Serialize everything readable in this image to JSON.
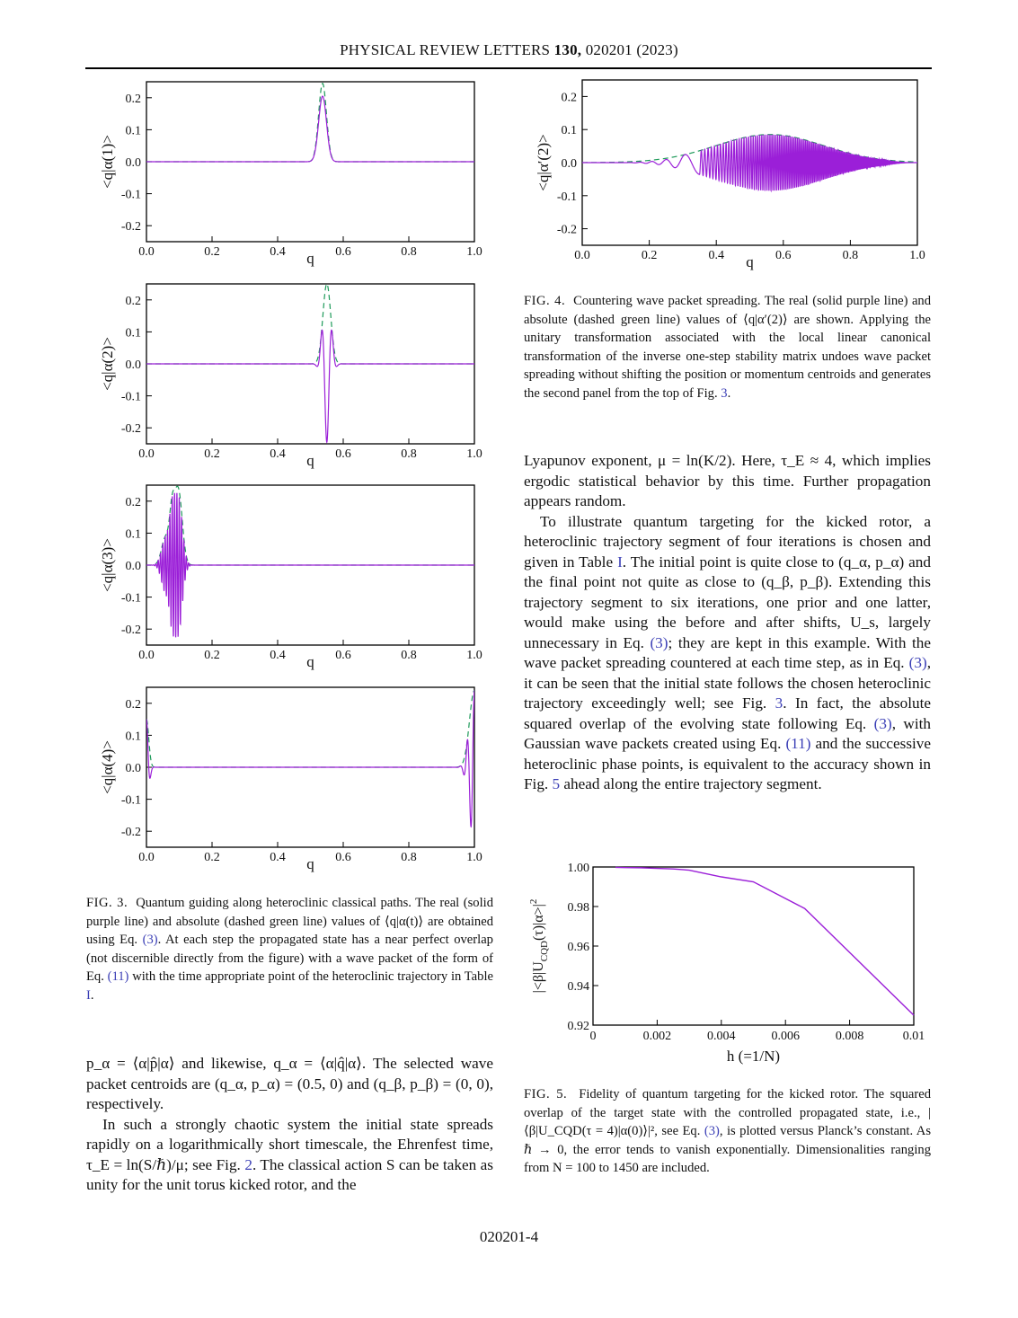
{
  "header": {
    "journal": "PHYSICAL REVIEW LETTERS",
    "volume": "130,",
    "article": "020201 (2023)"
  },
  "footer": {
    "page": "020201-4"
  },
  "colors": {
    "real": "#9b1fd8",
    "abs": "#1e9a5a"
  },
  "fig3": {
    "panels": [
      {
        "ylabel": "<q|α(1)>",
        "xlabel": "q",
        "xticks": [
          "0.0",
          "0.2",
          "0.4",
          "0.6",
          "0.8",
          "1.0"
        ],
        "yticks": [
          "0.2",
          "0.1",
          "0.0",
          "-0.1",
          "-0.2"
        ]
      },
      {
        "ylabel": "<q|α(2)>",
        "xlabel": "q",
        "xticks": [
          "0.0",
          "0.2",
          "0.4",
          "0.6",
          "0.8",
          "1.0"
        ],
        "yticks": [
          "0.2",
          "0.1",
          "0.0",
          "-0.1",
          "-0.2"
        ]
      },
      {
        "ylabel": "<q|α(3)>",
        "xlabel": "q",
        "xticks": [
          "0.0",
          "0.2",
          "0.4",
          "0.6",
          "0.8",
          "1.0"
        ],
        "yticks": [
          "0.2",
          "0.1",
          "0.0",
          "-0.1",
          "-0.2"
        ]
      },
      {
        "ylabel": "<q|α(4)>",
        "xlabel": "q",
        "xticks": [
          "0.0",
          "0.2",
          "0.4",
          "0.6",
          "0.8",
          "1.0"
        ],
        "yticks": [
          "0.2",
          "0.1",
          "0.0",
          "-0.1",
          "-0.2"
        ]
      }
    ],
    "caption_label": "FIG. 3.",
    "caption_a": "Quantum guiding along heteroclinic classical paths. The real (solid purple line) and absolute (dashed green line) values of ⟨q|α(t)⟩ are obtained using Eq.",
    "caption_ref1": "(3)",
    "caption_b": ". At each step the propagated state has a near perfect overlap (not discernible directly from the figure) with a wave packet of the form of Eq.",
    "caption_ref2": "(11)",
    "caption_c": "with the time appropriate point of the heteroclinic trajectory in Table",
    "caption_ref3": "I",
    "caption_d": "."
  },
  "fig4": {
    "ylabel": "<q|α′(2)>",
    "xlabel": "q",
    "xticks": [
      "0.0",
      "0.2",
      "0.4",
      "0.6",
      "0.8",
      "1.0"
    ],
    "yticks": [
      "0.2",
      "0.1",
      "0.0",
      "-0.1",
      "-0.2"
    ],
    "caption_label": "FIG. 4.",
    "caption_a": "Countering wave packet spreading. The real (solid purple line) and absolute (dashed green line) values of ⟨q|α′(2)⟩ are shown. Applying the unitary transformation associated with the local linear canonical transformation of the inverse one-step stability matrix undoes wave packet spreading without shifting the position or momentum centroids and generates the second panel from the top of Fig.",
    "caption_ref1": "3",
    "caption_b": "."
  },
  "fig5": {
    "ylabel": "|<β|U",
    "ylabel_sub": "CQD",
    "ylabel_tail": "(τ)|α>|",
    "ylabel_sup": "2",
    "xlabel": "h (=1/N)",
    "xticks": [
      "0",
      "0.002",
      "0.004",
      "0.006",
      "0.008",
      "0.01"
    ],
    "yticks": [
      "1.00",
      "0.98",
      "0.96",
      "0.94",
      "0.92"
    ],
    "caption_label": "FIG. 5.",
    "caption_a": "Fidelity of quantum targeting for the kicked rotor. The squared overlap of the target state with the controlled propagated state, i.e., |⟨β|U_CQD(τ = 4)|α(0)⟩|², see Eq.",
    "caption_ref1": "(3)",
    "caption_b": ", is plotted versus Planck’s constant. As ℏ → 0, the error tends to vanish exponentially. Dimensionalities ranging from N = 100 to 1450 are included."
  },
  "chart_data": [
    {
      "type": "line",
      "title": "",
      "xlabel": "q",
      "ylabel": "<q|α(1)>",
      "xlim": [
        0,
        1
      ],
      "ylim": [
        -0.25,
        0.25
      ],
      "series": [
        {
          "name": "real",
          "style": "solid purple",
          "peaks": [
            {
              "q": 0.537,
              "amp": 0.205
            }
          ]
        },
        {
          "name": "abs",
          "style": "dashed green",
          "peaks": [
            {
              "q": 0.537,
              "amp": 0.245
            }
          ]
        }
      ]
    },
    {
      "type": "line",
      "title": "",
      "xlabel": "q",
      "ylabel": "<q|α(2)>",
      "xlim": [
        0,
        1
      ],
      "ylim": [
        -0.25,
        0.25
      ],
      "series": [
        {
          "name": "real",
          "style": "solid purple",
          "peaks": [
            {
              "q": 0.52,
              "amp": -0.045
            },
            {
              "q": 0.533,
              "amp": 0.15
            },
            {
              "q": 0.55,
              "amp": -0.245
            },
            {
              "q": 0.567,
              "amp": 0.15
            },
            {
              "q": 0.58,
              "amp": -0.045
            }
          ]
        },
        {
          "name": "abs",
          "style": "dashed green",
          "center": 0.55,
          "amp": 0.25
        }
      ]
    },
    {
      "type": "line",
      "title": "",
      "xlabel": "q",
      "ylabel": "<q|α(3)>",
      "xlim": [
        0,
        1
      ],
      "ylim": [
        -0.25,
        0.25
      ],
      "series": [
        {
          "name": "real",
          "style": "solid purple",
          "range": [
            0.04,
            0.13
          ],
          "max": 0.205,
          "min": -0.205
        },
        {
          "name": "abs",
          "style": "dashed green",
          "range": [
            0.04,
            0.13
          ],
          "max": 0.245
        }
      ]
    },
    {
      "type": "line",
      "title": "",
      "xlabel": "q",
      "ylabel": "<q|α(4)>",
      "xlim": [
        0,
        1
      ],
      "ylim": [
        -0.25,
        0.25
      ],
      "series": [
        {
          "name": "real",
          "style": "solid purple",
          "edges": [
            0.0,
            1.0
          ],
          "max": 0.2,
          "min": -0.245
        },
        {
          "name": "abs",
          "style": "dashed green",
          "edges": [
            0.0,
            1.0
          ],
          "max": 0.24
        }
      ]
    },
    {
      "type": "line",
      "title": "",
      "xlabel": "q",
      "ylabel": "<q|α′(2)>",
      "xlim": [
        0,
        1
      ],
      "ylim": [
        -0.25,
        0.25
      ],
      "series": [
        {
          "name": "real",
          "style": "solid purple",
          "range": [
            0.12,
            0.98
          ],
          "max": 0.085,
          "min": -0.085
        },
        {
          "name": "abs",
          "style": "dashed green",
          "center": 0.56,
          "amp": 0.085
        }
      ]
    },
    {
      "type": "line",
      "title": "",
      "xlabel": "h (=1/N)",
      "ylabel": "|<β|U_CQD(τ)|α>|^2",
      "xlim": [
        0,
        0.01
      ],
      "ylim": [
        0.92,
        1.0
      ],
      "series": [
        {
          "name": "fidelity",
          "x": [
            0.0007,
            0.001,
            0.0015,
            0.002,
            0.0025,
            0.003,
            0.004,
            0.005,
            0.0066,
            0.01
          ],
          "y": [
            0.9998,
            0.9997,
            0.9996,
            0.9993,
            0.999,
            0.9984,
            0.995,
            0.9925,
            0.979,
            0.925
          ]
        }
      ]
    }
  ],
  "body_left": {
    "p1": "p_α = ⟨α|p̂|α⟩ and likewise, q_α = ⟨α|q̂|α⟩. The selected wave packet centroids are (q_α, p_α) = (0.5, 0) and (q_β, p_β) = (0, 0), respectively.",
    "p2a": "In such a strongly chaotic system the initial state spreads rapidly on a logarithmically short timescale, the Ehrenfest time, τ_E = ln(S/ℏ)/μ; see Fig.",
    "p2ref": "2",
    "p2b": ". The classical action S can be taken as unity for the unit torus kicked rotor, and the"
  },
  "body_right": {
    "p1": "Lyapunov exponent, μ = ln(K/2). Here, τ_E ≈ 4, which implies ergodic statistical behavior by this time. Further propagation appears random.",
    "p2a": "To illustrate quantum targeting for the kicked rotor, a heteroclinic trajectory segment of four iterations is chosen and given in Table",
    "p2ref1": "I",
    "p2b": ". The initial point is quite close to (q_α, p_α) and the final point not quite as close to (q_β, p_β). Extending this trajectory segment to six iterations, one prior and one latter, would make using the before and after shifts, U_s, largely unnecessary in Eq.",
    "p2ref2": "(3)",
    "p2c": "; they are kept in this example. With the wave packet spreading countered at each time step, as in Eq.",
    "p2ref3": "(3)",
    "p2d": ", it can be seen that the initial state follows the chosen heteroclinic trajectory exceedingly well; see Fig.",
    "p2ref4": "3",
    "p2e": ". In fact, the absolute squared overlap of the evolving state following Eq.",
    "p2ref5": "(3)",
    "p2f": ", with Gaussian wave packets created using Eq.",
    "p2ref6": "(11)",
    "p2g": "and the successive heteroclinic phase points, is equivalent to the accuracy shown in Fig.",
    "p2ref7": "5",
    "p2h": "ahead along the entire trajectory segment."
  }
}
